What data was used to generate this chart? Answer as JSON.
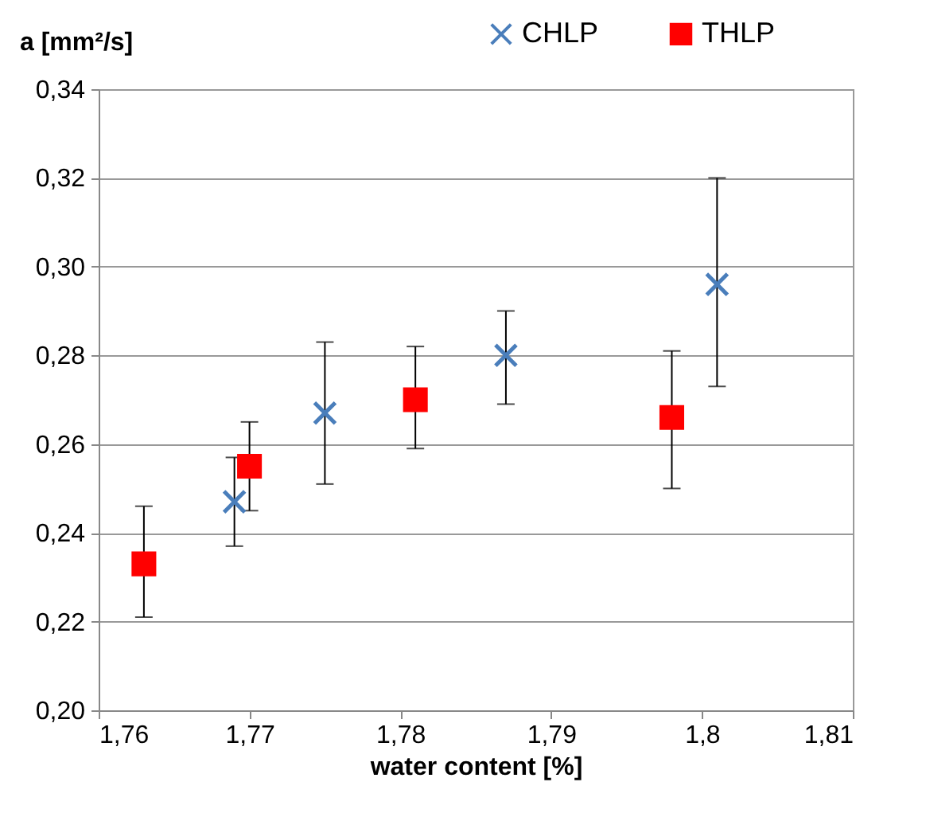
{
  "chart_data": {
    "type": "scatter",
    "xlabel": "water content [%]",
    "ylabel": "a [mm²/s]",
    "xlim": [
      1.76,
      1.81
    ],
    "xticks": [
      {
        "value": 1.76,
        "label": "1,76"
      },
      {
        "value": 1.77,
        "label": "1,77"
      },
      {
        "value": 1.78,
        "label": "1,78"
      },
      {
        "value": 1.79,
        "label": "1,79"
      },
      {
        "value": 1.8,
        "label": "1,8"
      },
      {
        "value": 1.81,
        "label": "1,81"
      }
    ],
    "ylim": [
      0.2,
      0.34
    ],
    "yticks": [
      {
        "value": 0.2,
        "label": "0,20"
      },
      {
        "value": 0.22,
        "label": "0,22"
      },
      {
        "value": 0.24,
        "label": "0,24"
      },
      {
        "value": 0.26,
        "label": "0,26"
      },
      {
        "value": 0.28,
        "label": "0,28"
      },
      {
        "value": 0.3,
        "label": "0,30"
      },
      {
        "value": 0.32,
        "label": "0,32"
      },
      {
        "value": 0.34,
        "label": "0,34"
      }
    ],
    "grid": "y",
    "legend": "top right",
    "series": [
      {
        "name": "CHLP",
        "color": "#4a7ebb",
        "marker": "cross",
        "x": [
          1.769,
          1.775,
          1.787,
          1.801
        ],
        "values": [
          0.247,
          0.267,
          0.28,
          0.296
        ],
        "errors": [
          [
            0.237,
            0.257
          ],
          [
            0.251,
            0.283
          ],
          [
            0.269,
            0.29
          ],
          [
            0.273,
            0.32
          ]
        ]
      },
      {
        "name": "THLP",
        "color": "#ff0000",
        "marker": "square",
        "x": [
          1.763,
          1.77,
          1.781,
          1.798
        ],
        "values": [
          0.233,
          0.255,
          0.27,
          0.266
        ],
        "errors": [
          [
            0.221,
            0.246
          ],
          [
            0.245,
            0.265
          ],
          [
            0.259,
            0.282
          ],
          [
            0.25,
            0.281
          ]
        ]
      }
    ]
  }
}
